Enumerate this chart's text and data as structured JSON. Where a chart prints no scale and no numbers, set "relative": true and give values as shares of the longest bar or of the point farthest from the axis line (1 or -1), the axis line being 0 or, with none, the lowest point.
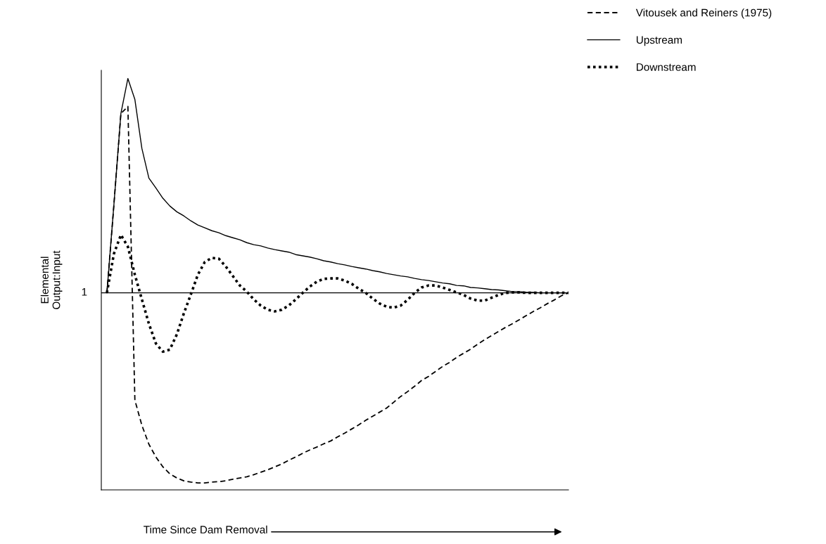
{
  "chart_data": {
    "type": "line",
    "relative": true,
    "xlabel": "Time Since Dam Removal",
    "ylabel": "Elemental\nOutput:Input",
    "legend": "top right",
    "marker": "none",
    "annotations": [
      "1"
    ],
    "categories": [
      null,
      null,
      null,
      null,
      null,
      null,
      null,
      null,
      null,
      null,
      null,
      null,
      null,
      null,
      null,
      null,
      null,
      null,
      null,
      null,
      null,
      null,
      null,
      null,
      null,
      null,
      null,
      null,
      null,
      null,
      null,
      null,
      null,
      null,
      null,
      null,
      null,
      null,
      null,
      null,
      null,
      null,
      null,
      null,
      null,
      null,
      null,
      null,
      null,
      null,
      null,
      null,
      null,
      null,
      null,
      null,
      null,
      null,
      null,
      null,
      null,
      null,
      null,
      null,
      null,
      null,
      null
    ],
    "ref_lines": [
      {
        "axis": "y",
        "value": 0.479,
        "color": "#000000",
        "line_style": "solid"
      }
    ],
    "series": [
      {
        "name": "Vitousek and Reiners (1975)",
        "color": "#000000",
        "line_style": "dashed",
        "values": [
          0.479,
          0.693,
          0.915,
          0.932,
          0.218,
          0.157,
          0.111,
          0.08,
          0.056,
          0.039,
          0.029,
          0.022,
          0.019,
          0.017,
          0.017,
          0.019,
          0.02,
          0.022,
          0.026,
          0.029,
          0.032,
          0.037,
          0.043,
          0.049,
          0.056,
          0.063,
          0.072,
          0.08,
          0.089,
          0.097,
          0.104,
          0.112,
          0.119,
          0.129,
          0.138,
          0.148,
          0.158,
          0.169,
          0.179,
          0.189,
          0.199,
          0.213,
          0.227,
          0.239,
          0.252,
          0.266,
          0.276,
          0.288,
          0.3,
          0.31,
          0.322,
          0.332,
          0.342,
          0.354,
          0.365,
          0.375,
          0.385,
          0.395,
          0.404,
          0.414,
          0.424,
          0.434,
          0.443,
          0.453,
          0.462,
          0.472,
          0.479
        ]
      },
      {
        "name": "Upstream",
        "color": "#000000",
        "line_style": "solid",
        "values": [
          0.479,
          0.693,
          0.915,
          1.0,
          0.949,
          0.83,
          0.758,
          0.734,
          0.709,
          0.69,
          0.676,
          0.666,
          0.654,
          0.644,
          0.637,
          0.63,
          0.625,
          0.618,
          0.613,
          0.608,
          0.601,
          0.596,
          0.593,
          0.588,
          0.584,
          0.581,
          0.578,
          0.572,
          0.569,
          0.566,
          0.562,
          0.557,
          0.554,
          0.55,
          0.547,
          0.543,
          0.54,
          0.537,
          0.533,
          0.53,
          0.526,
          0.523,
          0.52,
          0.518,
          0.514,
          0.511,
          0.509,
          0.506,
          0.503,
          0.501,
          0.497,
          0.496,
          0.492,
          0.491,
          0.489,
          0.487,
          0.486,
          0.484,
          0.482,
          0.482,
          0.48,
          0.48,
          0.479,
          0.479,
          0.479,
          0.479,
          0.479
        ]
      },
      {
        "name": "Downstream",
        "color": "#000000",
        "line_style": "dotted",
        "values": [
          0.479,
          0.574,
          0.62,
          0.591,
          0.523,
          0.463,
          0.404,
          0.356,
          0.336,
          0.341,
          0.378,
          0.429,
          0.475,
          0.523,
          0.554,
          0.564,
          0.562,
          0.543,
          0.52,
          0.497,
          0.482,
          0.463,
          0.448,
          0.438,
          0.434,
          0.438,
          0.448,
          0.463,
          0.479,
          0.494,
          0.506,
          0.513,
          0.514,
          0.514,
          0.509,
          0.501,
          0.489,
          0.479,
          0.465,
          0.453,
          0.445,
          0.443,
          0.448,
          0.462,
          0.479,
          0.492,
          0.497,
          0.497,
          0.492,
          0.486,
          0.48,
          0.474,
          0.465,
          0.46,
          0.46,
          0.467,
          0.474,
          0.479,
          0.48,
          0.48,
          0.479,
          0.479,
          0.479,
          0.479,
          0.479,
          0.479,
          0.479
        ]
      }
    ]
  }
}
